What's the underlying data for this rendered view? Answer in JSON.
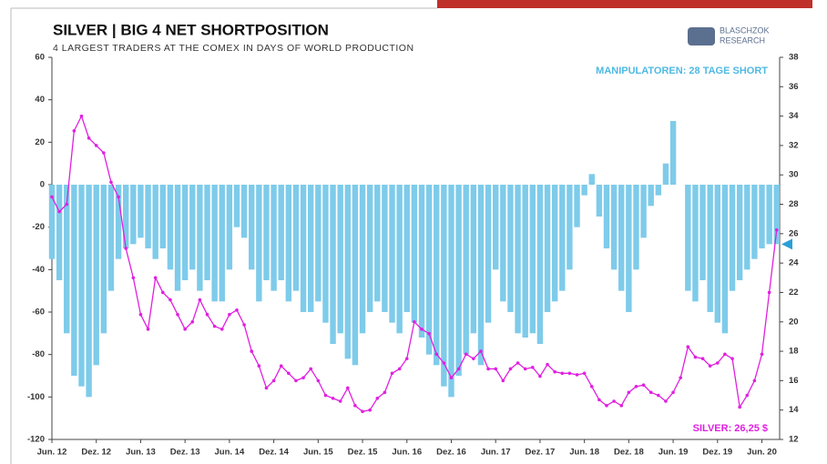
{
  "chart_data": {
    "type": "bar_line",
    "title": "SILVER | BIG 4 NET SHORTPOSITION",
    "subtitle": "4 LARGEST TRADERS AT THE COMEX IN DAYS OF WORLD PRODUCTION",
    "logo": [
      "BLASCHZOK",
      "RESEARCH"
    ],
    "annotations": [
      "MANIPULATOREN: 28 TAGE SHORT",
      "SILVER: 26,25 $"
    ],
    "categories": [
      "Jun. 12",
      null,
      null,
      null,
      null,
      null,
      "Dez. 12",
      null,
      null,
      null,
      null,
      null,
      "Jun. 13",
      null,
      null,
      null,
      null,
      null,
      "Dez. 13",
      null,
      null,
      null,
      null,
      null,
      "Jun. 14",
      null,
      null,
      null,
      null,
      null,
      "Dez. 14",
      null,
      null,
      null,
      null,
      null,
      "Jun. 15",
      null,
      null,
      null,
      null,
      null,
      "Dez. 15",
      null,
      null,
      null,
      null,
      null,
      "Jun. 16",
      null,
      null,
      null,
      null,
      null,
      "Dez. 16",
      null,
      null,
      null,
      null,
      null,
      "Jun. 17",
      null,
      null,
      null,
      null,
      null,
      "Dez. 17",
      null,
      null,
      null,
      null,
      null,
      "Jun. 18",
      null,
      null,
      null,
      null,
      null,
      "Dez. 18",
      null,
      null,
      null,
      null,
      null,
      "Jun. 19",
      null,
      null,
      null,
      null,
      null,
      "Dez. 19",
      null,
      null,
      null,
      null,
      null,
      "Jun. 20",
      null,
      null
    ],
    "series": [
      {
        "type": "bar",
        "color": "#7ecbea",
        "values": [
          -35,
          -45,
          -70,
          -90,
          -95,
          -100,
          -85,
          -70,
          -50,
          -35,
          -30,
          -28,
          -25,
          -30,
          -35,
          -30,
          -40,
          -50,
          -45,
          -40,
          -50,
          -45,
          -55,
          -55,
          -40,
          -20,
          -25,
          -40,
          -55,
          -45,
          -50,
          -45,
          -55,
          -50,
          -60,
          -60,
          -55,
          -65,
          -75,
          -70,
          -82,
          -85,
          -70,
          -60,
          -55,
          -60,
          -65,
          -70,
          -60,
          -65,
          -72,
          -80,
          -85,
          -95,
          -100,
          -90,
          -80,
          -70,
          -85,
          -65,
          -40,
          -55,
          -60,
          -70,
          -72,
          -70,
          -75,
          -60,
          -55,
          -50,
          -40,
          -20,
          -5,
          5,
          -15,
          -30,
          -40,
          -50,
          -60,
          -40,
          -25,
          -10,
          -5,
          10,
          30,
          0,
          -50,
          -55,
          -45,
          -60,
          -65,
          -70,
          -50,
          -45,
          -40,
          -35,
          -30,
          -28,
          -28
        ]
      },
      {
        "type": "line",
        "axis": "y2",
        "color": "#e020e0",
        "values": [
          28.5,
          27.5,
          28,
          33,
          34,
          32.5,
          32,
          31.5,
          29.5,
          28.5,
          25,
          23,
          20.5,
          19.5,
          23,
          22,
          21.5,
          20.5,
          19.5,
          20,
          21.5,
          20.5,
          19.7,
          19.5,
          20.5,
          20.8,
          19.8,
          18,
          17,
          15.5,
          16,
          17,
          16.5,
          16,
          16.2,
          16.8,
          16,
          15,
          14.8,
          14.6,
          15.5,
          14.3,
          13.9,
          14,
          14.8,
          15.2,
          16.5,
          16.8,
          17.5,
          20,
          19.5,
          19.2,
          17.8,
          17.2,
          16.2,
          16.8,
          17.8,
          17.5,
          18,
          16.8,
          16.8,
          16,
          16.8,
          17.2,
          16.8,
          16.9,
          16.3,
          17.1,
          16.6,
          16.5,
          16.5,
          16.4,
          16.5,
          15.6,
          14.7,
          14.3,
          14.6,
          14.3,
          15.2,
          15.6,
          15.7,
          15.2,
          15,
          14.6,
          15.2,
          16.2,
          18.3,
          17.6,
          17.5,
          17,
          17.2,
          17.8,
          17.5,
          14.2,
          15,
          16,
          17.8,
          22,
          26.25
        ]
      }
    ],
    "ylim": [
      -120,
      60
    ],
    "yticks": [
      -120,
      -100,
      -80,
      -60,
      -40,
      -20,
      0,
      20,
      40,
      60
    ],
    "y2lim": [
      12,
      38
    ],
    "y2ticks": [
      12,
      14,
      16,
      18,
      20,
      22,
      24,
      26,
      28,
      30,
      32,
      34,
      36,
      38
    ]
  }
}
